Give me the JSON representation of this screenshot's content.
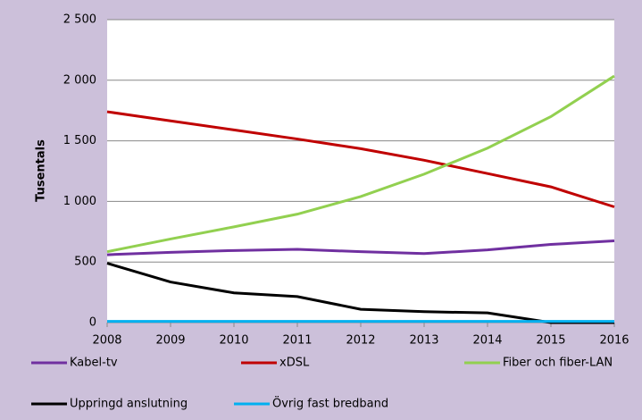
{
  "chart_data": {
    "type": "line",
    "y_label": "Tusentals",
    "categories": [
      "2008",
      "2009",
      "2010",
      "2011",
      "2012",
      "2013",
      "2014",
      "2015",
      "2016"
    ],
    "series": [
      {
        "name": "Kabel-tv",
        "color": "#7030a0",
        "values": [
          560,
          580,
          595,
          605,
          585,
          570,
          600,
          645,
          675
        ]
      },
      {
        "name": "xDSL",
        "color": "#c00000",
        "values": [
          1740,
          1665,
          1590,
          1515,
          1435,
          1340,
          1230,
          1120,
          955
        ]
      },
      {
        "name": "Fiber och fiber-LAN",
        "color": "#92d050",
        "values": [
          585,
          690,
          790,
          895,
          1040,
          1225,
          1440,
          1700,
          2035
        ]
      },
      {
        "name": "Uppringd anslutning",
        "color": "#000000",
        "values": [
          490,
          335,
          245,
          215,
          110,
          90,
          80,
          0,
          0
        ]
      },
      {
        "name": "Övrig fast bredband",
        "color": "#00b0f0",
        "values": [
          10,
          10,
          10,
          10,
          10,
          10,
          10,
          10,
          10
        ]
      }
    ],
    "ylim": [
      0,
      2500
    ],
    "yticks": [
      0,
      500,
      {
        "value": 1000,
        "label": "1 000"
      },
      {
        "value": 1500,
        "label": "1 500"
      },
      {
        "value": 2000,
        "label": "2 000"
      },
      {
        "value": 2500,
        "label": "2 500"
      }
    ],
    "grid": true,
    "legend": "bottom"
  }
}
